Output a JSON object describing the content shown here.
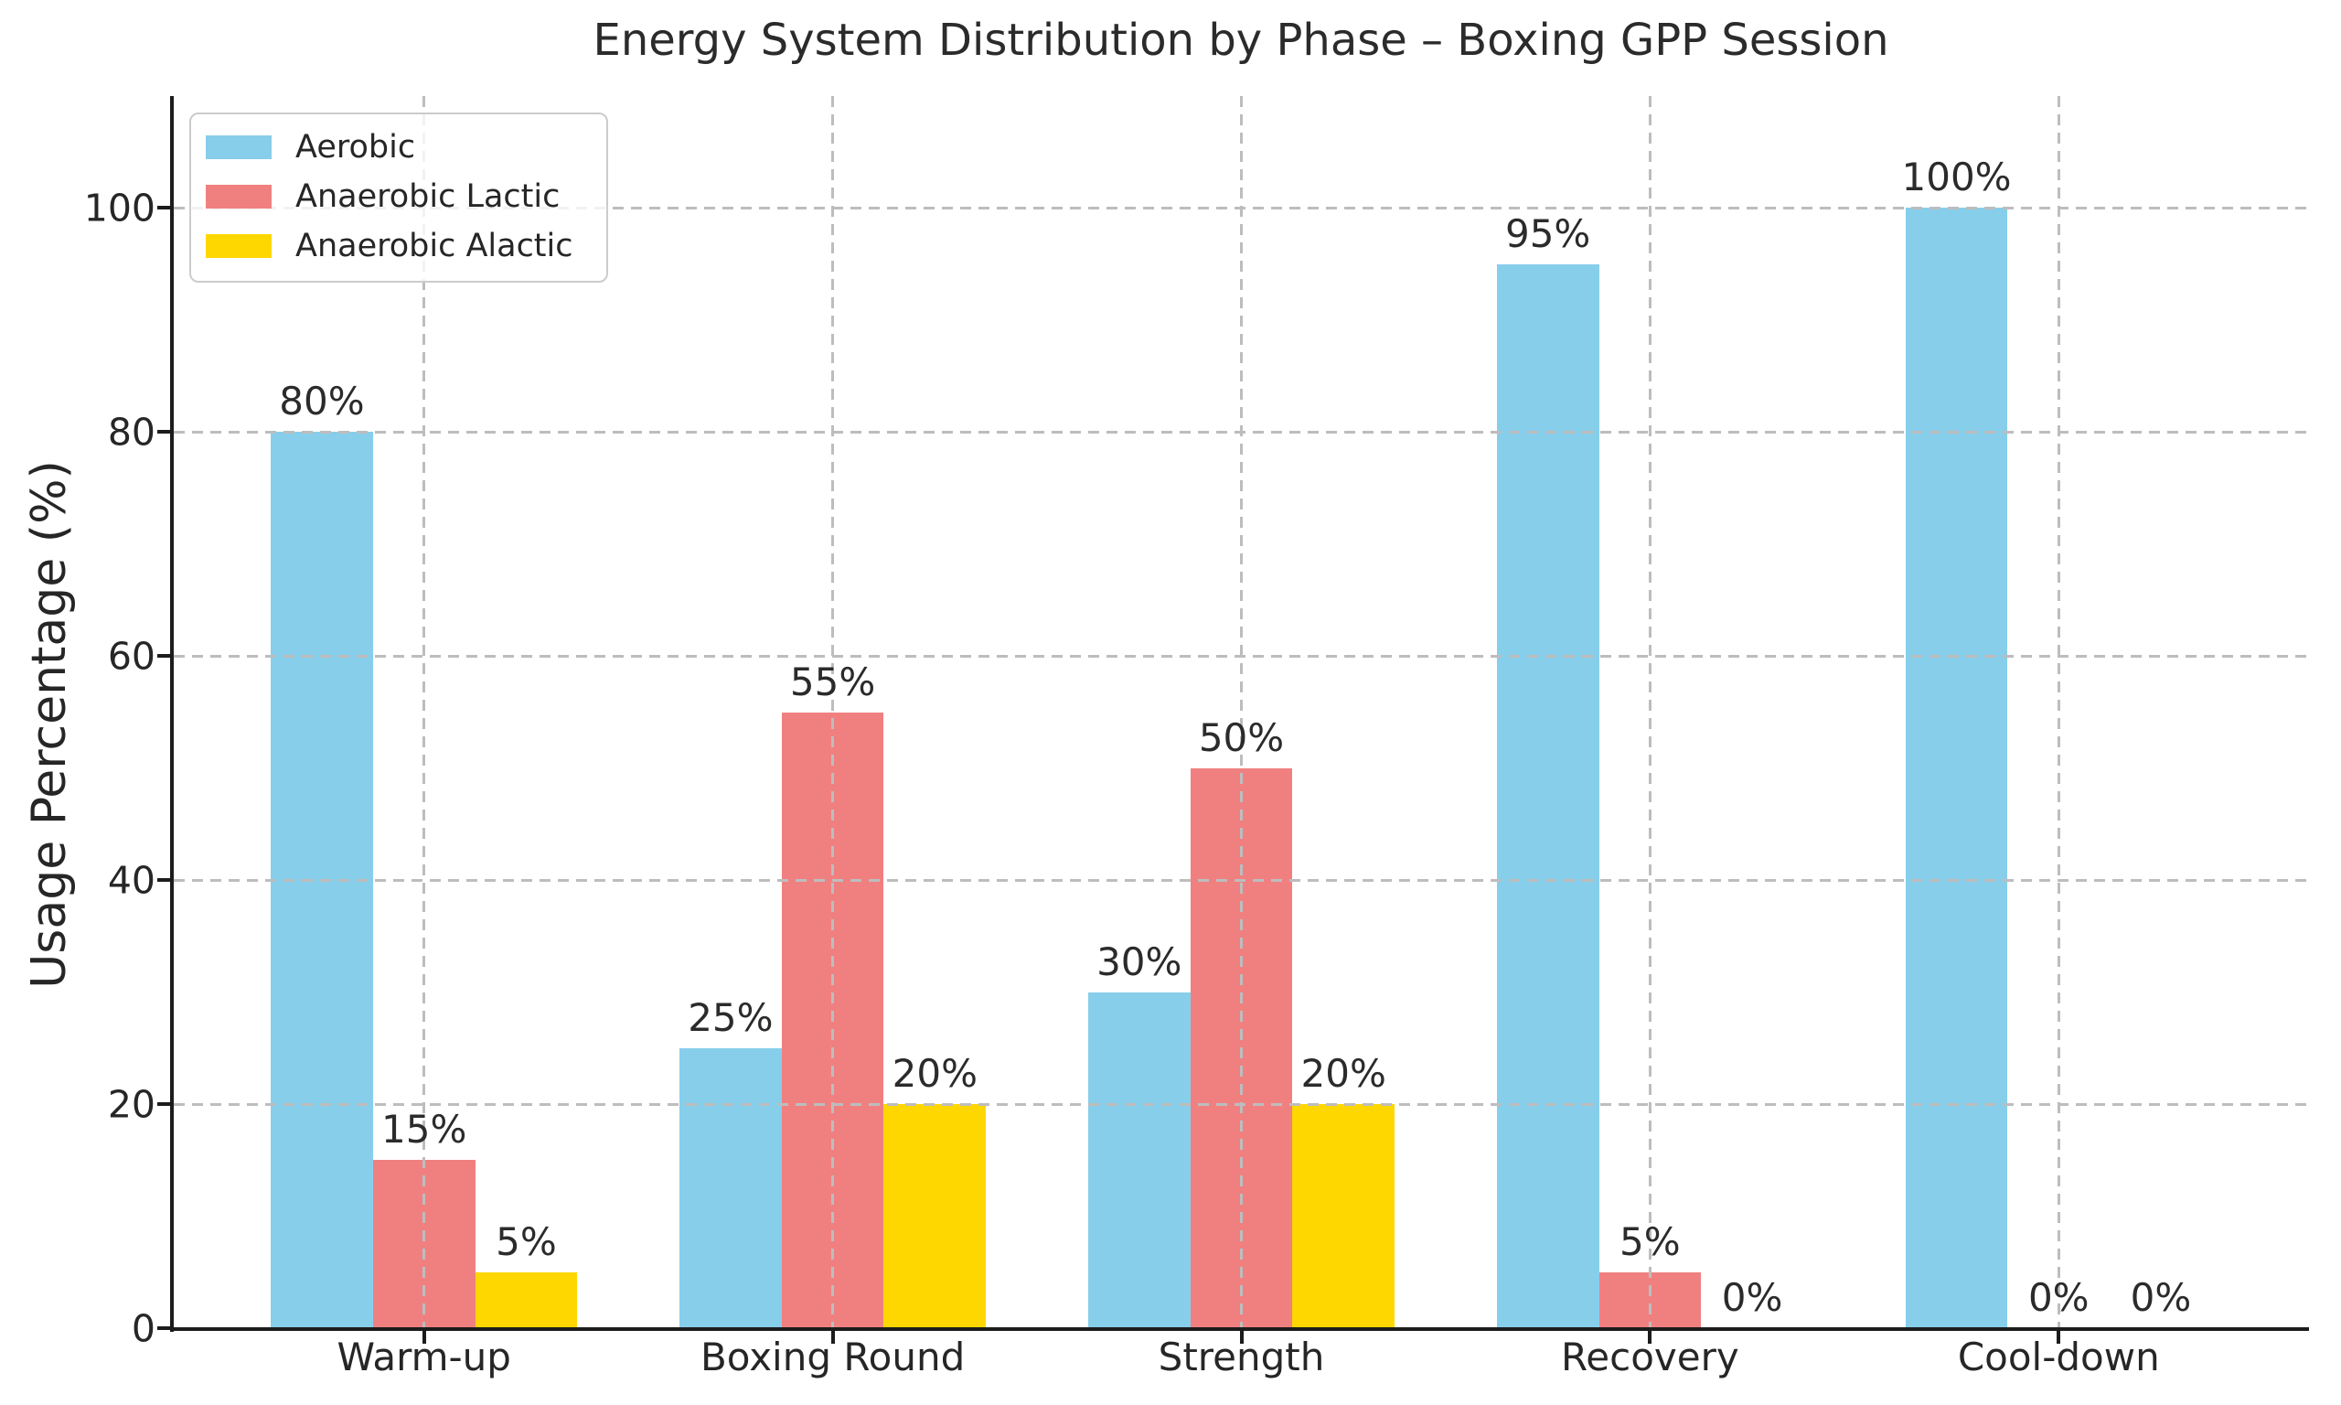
{
  "chart_data": {
    "type": "bar",
    "title": "Energy System Distribution by Phase – Boxing GPP Session",
    "ylabel": "Usage Percentage (%)",
    "xlabel": "",
    "categories": [
      "Warm-up",
      "Boxing Round",
      "Strength",
      "Recovery",
      "Cool-down"
    ],
    "series": [
      {
        "name": "Aerobic",
        "color": "#87CEEB",
        "values": [
          80,
          25,
          30,
          95,
          100
        ]
      },
      {
        "name": "Anaerobic Lactic",
        "color": "#F08080",
        "values": [
          15,
          55,
          50,
          5,
          0
        ]
      },
      {
        "name": "Anaerobic Alactic",
        "color": "#FFD700",
        "values": [
          5,
          20,
          20,
          0,
          0
        ]
      }
    ],
    "value_label_suffix": "%",
    "yticks": [
      0,
      20,
      40,
      60,
      80,
      100
    ],
    "ylim": [
      0,
      110
    ],
    "grid": {
      "horizontal": true,
      "vertical": true,
      "style": "dashed"
    },
    "legend": {
      "position": "upper-left",
      "entries": [
        "Aerobic",
        "Anaerobic Lactic",
        "Anaerobic Alactic"
      ]
    }
  },
  "colors": {
    "grid": "#bdbdbd",
    "axis": "#1c1c1c",
    "text": "#262626",
    "legend_border": "#cccccc",
    "legend_background": "rgba(255,255,255,0.8)",
    "background": "#ffffff"
  }
}
